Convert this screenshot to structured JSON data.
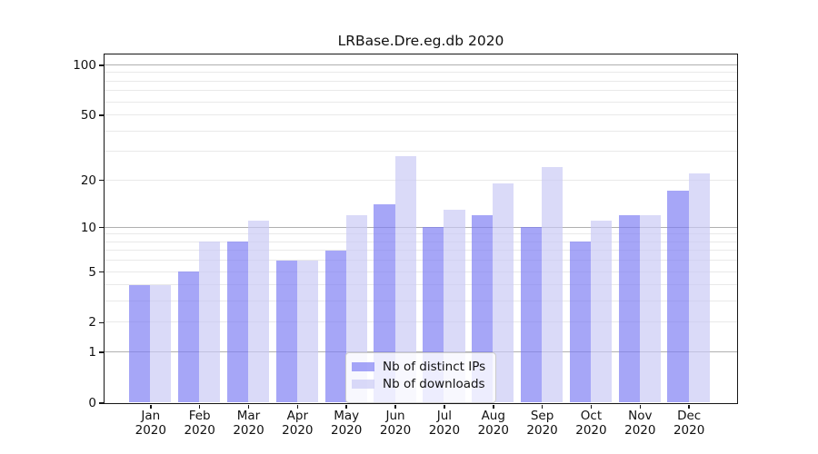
{
  "chart_data": {
    "type": "bar",
    "title": "LRBase.Dre.eg.db 2020",
    "categories": [
      "Jan 2020",
      "Feb 2020",
      "Mar 2020",
      "Apr 2020",
      "May 2020",
      "Jun 2020",
      "Jul 2020",
      "Aug 2020",
      "Sep 2020",
      "Oct 2020",
      "Nov 2020",
      "Dec 2020"
    ],
    "x_tick_months": [
      "Jan",
      "Feb",
      "Mar",
      "Apr",
      "May",
      "Jun",
      "Jul",
      "Aug",
      "Sep",
      "Oct",
      "Nov",
      "Dec"
    ],
    "x_tick_year": "2020",
    "series": [
      {
        "name": "Nb of distinct IPs",
        "color": "rgba(124,124,243,0.68)",
        "values": [
          4,
          5,
          8,
          6,
          7,
          14,
          10,
          12,
          10,
          8,
          12,
          17
        ]
      },
      {
        "name": "Nb of downloads",
        "color": "rgba(200,200,245,0.68)",
        "values": [
          4,
          8,
          11,
          6,
          12,
          28,
          13,
          19,
          24,
          11,
          12,
          22
        ]
      }
    ],
    "y_axis": {
      "scale": "log1p",
      "tick_values": [
        0,
        1,
        2,
        5,
        10,
        20,
        50,
        100
      ],
      "range": [
        0,
        116
      ]
    },
    "grid": {
      "major_values": [
        1,
        10,
        100
      ],
      "minor_values": [
        2,
        3,
        4,
        6,
        7,
        8,
        9,
        20,
        30,
        40,
        50,
        60,
        70,
        80,
        90,
        5
      ],
      "major_color": "#b0b0b0",
      "minor_color": "#e9e9e9"
    },
    "legend": {
      "position": "lower-center",
      "entries": [
        "Nb of distinct IPs",
        "Nb of downloads"
      ]
    }
  }
}
